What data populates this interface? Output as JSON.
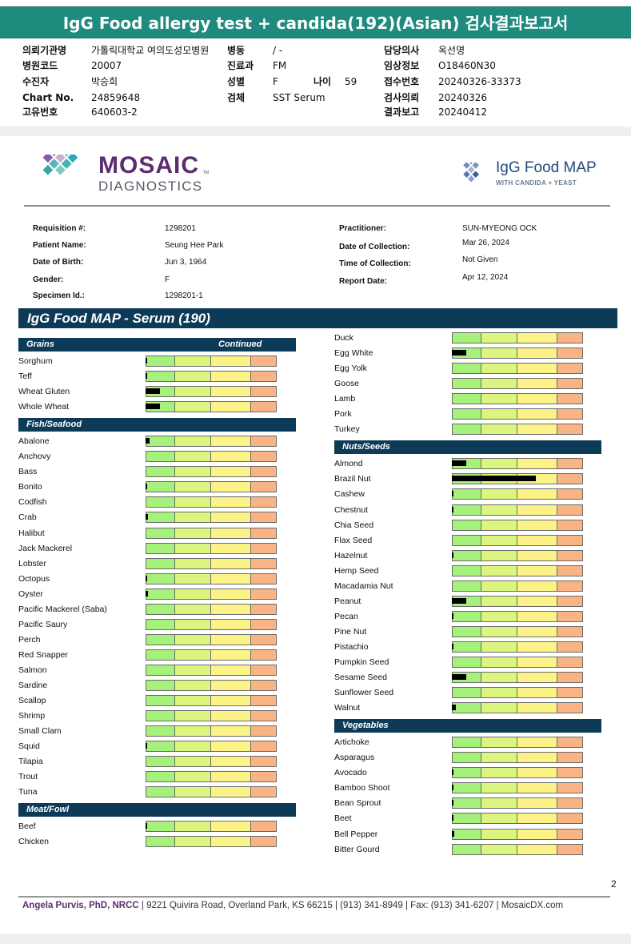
{
  "report_title": "IgG Food allergy test + candida(192)(Asian) 검사결과보고서",
  "korean_header": [
    {
      "label": "의뢰기관명",
      "value": "가톨릭대학교 여의도성모병원",
      "col": 0,
      "row": 0
    },
    {
      "label": "병원코드",
      "value": "20007",
      "col": 0,
      "row": 1
    },
    {
      "label": "수진자",
      "value": "박승희",
      "col": 0,
      "row": 2
    },
    {
      "label": "Chart No.",
      "value": "24859648",
      "col": 0,
      "row": 3
    },
    {
      "label": "고유번호",
      "value": "640603-2",
      "col": 0,
      "row": 4
    },
    {
      "label": "병동",
      "value": "/ -",
      "col": 1,
      "row": 0
    },
    {
      "label": "진료과",
      "value": "FM",
      "col": 1,
      "row": 1
    },
    {
      "label": "성별",
      "value": "F",
      "col": 1,
      "row": 2
    },
    {
      "label": "검체",
      "value": "SST Serum",
      "col": 1,
      "row": 3
    },
    {
      "label": "담당의사",
      "value": "옥선명",
      "col": 2,
      "row": 0
    },
    {
      "label": "임상정보",
      "value": "O18460N30",
      "col": 2,
      "row": 1
    },
    {
      "label": "접수번호",
      "value": "20240326-33373",
      "col": 2,
      "row": 2
    },
    {
      "label": "검사의뢰",
      "value": "20240326",
      "col": 2,
      "row": 3
    },
    {
      "label": "결과보고",
      "value": "20240412",
      "col": 2,
      "row": 4
    }
  ],
  "age_label": "나이",
  "age_value": "59",
  "logo_left": {
    "line1": "MOSAIC",
    "line2": "DIAGNOSTICS",
    "tm": "TM"
  },
  "logo_right": {
    "line1": "IgG Food MAP",
    "line2": "WITH CANDIDA + YEAST"
  },
  "patient_info": [
    {
      "label": "Requisition #:",
      "value": "1298201",
      "col": 0,
      "row": 0
    },
    {
      "label": "Patient Name:",
      "value": "Seung Hee Park",
      "col": 0,
      "row": 1
    },
    {
      "label": "Date of Birth:",
      "value": "Jun 3, 1964",
      "col": 0,
      "row": 2
    },
    {
      "label": "Gender:",
      "value": "F",
      "col": 0,
      "row": 3
    },
    {
      "label": "Specimen Id.:",
      "value": "1298201-1",
      "col": 0,
      "row": 4
    },
    {
      "label": "Practitioner:",
      "value": "SUN-MYEONG OCK",
      "col": 1,
      "row": 0
    },
    {
      "label": "Date of Collection:",
      "value": "Mar 26, 2024",
      "col": 1,
      "row": 1
    },
    {
      "label": "Time of Collection:",
      "value": "Not Given",
      "col": 1,
      "row": 2
    },
    {
      "label": "Report Date:",
      "value": "Apr 12, 2024",
      "col": 1,
      "row": 3
    }
  ],
  "map_title": "IgG Food MAP - Serum (190)",
  "bar_scale_note": "bar values are fraction of full scale width",
  "left_column": [
    {
      "type": "header",
      "title": "Grains",
      "extra": "Continued"
    },
    {
      "type": "food",
      "name": "Sorghum",
      "value": 0.012
    },
    {
      "type": "food",
      "name": "Teff",
      "value": 0.012
    },
    {
      "type": "food",
      "name": "Wheat Gluten",
      "value": 0.11
    },
    {
      "type": "food",
      "name": "Whole Wheat",
      "value": 0.11
    },
    {
      "type": "header",
      "title": "Fish/Seafood",
      "extra": ""
    },
    {
      "type": "food",
      "name": "Abalone",
      "value": 0.03
    },
    {
      "type": "food",
      "name": "Anchovy",
      "value": 0
    },
    {
      "type": "food",
      "name": "Bass",
      "value": 0
    },
    {
      "type": "food",
      "name": "Bonito",
      "value": 0.012
    },
    {
      "type": "food",
      "name": "Codfish",
      "value": 0
    },
    {
      "type": "food",
      "name": "Crab",
      "value": 0.018
    },
    {
      "type": "food",
      "name": "Halibut",
      "value": 0
    },
    {
      "type": "food",
      "name": "Jack Mackerel",
      "value": 0
    },
    {
      "type": "food",
      "name": "Lobster",
      "value": 0
    },
    {
      "type": "food",
      "name": "Octopus",
      "value": 0.008
    },
    {
      "type": "food",
      "name": "Oyster",
      "value": 0.018
    },
    {
      "type": "food",
      "name": "Pacific Mackerel (Saba)",
      "value": 0
    },
    {
      "type": "food",
      "name": "Pacific Saury",
      "value": 0
    },
    {
      "type": "food",
      "name": "Perch",
      "value": 0
    },
    {
      "type": "food",
      "name": "Red Snapper",
      "value": 0
    },
    {
      "type": "food",
      "name": "Salmon",
      "value": 0
    },
    {
      "type": "food",
      "name": "Sardine",
      "value": 0
    },
    {
      "type": "food",
      "name": "Scallop",
      "value": 0
    },
    {
      "type": "food",
      "name": "Shrimp",
      "value": 0
    },
    {
      "type": "food",
      "name": "Small Clam",
      "value": 0
    },
    {
      "type": "food",
      "name": "Squid",
      "value": 0.012
    },
    {
      "type": "food",
      "name": "Tilapia",
      "value": 0
    },
    {
      "type": "food",
      "name": "Trout",
      "value": 0
    },
    {
      "type": "food",
      "name": "Tuna",
      "value": 0
    },
    {
      "type": "header",
      "title": "Meat/Fowl",
      "extra": ""
    },
    {
      "type": "food",
      "name": "Beef",
      "value": 0.012
    },
    {
      "type": "food",
      "name": "Chicken",
      "value": 0
    }
  ],
  "right_column": [
    {
      "type": "food",
      "name": "Duck",
      "value": 0
    },
    {
      "type": "food",
      "name": "Egg White",
      "value": 0.11
    },
    {
      "type": "food",
      "name": "Egg Yolk",
      "value": 0
    },
    {
      "type": "food",
      "name": "Goose",
      "value": 0
    },
    {
      "type": "food",
      "name": "Lamb",
      "value": 0
    },
    {
      "type": "food",
      "name": "Pork",
      "value": 0
    },
    {
      "type": "food",
      "name": "Turkey",
      "value": 0
    },
    {
      "type": "header",
      "title": "Nuts/Seeds",
      "extra": ""
    },
    {
      "type": "food",
      "name": "Almond",
      "value": 0.11
    },
    {
      "type": "food",
      "name": "Brazil Nut",
      "value": 0.64
    },
    {
      "type": "food",
      "name": "Cashew",
      "value": 0.01
    },
    {
      "type": "food",
      "name": "Chestnut",
      "value": 0.01
    },
    {
      "type": "food",
      "name": "Chia Seed",
      "value": 0
    },
    {
      "type": "food",
      "name": "Flax Seed",
      "value": 0
    },
    {
      "type": "food",
      "name": "Hazelnut",
      "value": 0.012
    },
    {
      "type": "food",
      "name": "Hemp Seed",
      "value": 0
    },
    {
      "type": "food",
      "name": "Macadamia Nut",
      "value": 0
    },
    {
      "type": "food",
      "name": "Peanut",
      "value": 0.11
    },
    {
      "type": "food",
      "name": "Pecan",
      "value": 0.01
    },
    {
      "type": "food",
      "name": "Pine Nut",
      "value": 0
    },
    {
      "type": "food",
      "name": "Pistachio",
      "value": 0.012
    },
    {
      "type": "food",
      "name": "Pumpkin Seed",
      "value": 0
    },
    {
      "type": "food",
      "name": "Sesame Seed",
      "value": 0.11
    },
    {
      "type": "food",
      "name": "Sunflower Seed",
      "value": 0
    },
    {
      "type": "food",
      "name": "Walnut",
      "value": 0.03
    },
    {
      "type": "header",
      "title": "Vegetables",
      "extra": ""
    },
    {
      "type": "food",
      "name": "Artichoke",
      "value": 0
    },
    {
      "type": "food",
      "name": "Asparagus",
      "value": 0
    },
    {
      "type": "food",
      "name": "Avocado",
      "value": 0.012
    },
    {
      "type": "food",
      "name": "Bamboo Shoot",
      "value": 0.008
    },
    {
      "type": "food",
      "name": "Bean Sprout",
      "value": 0.012
    },
    {
      "type": "food",
      "name": "Beet",
      "value": 0.008
    },
    {
      "type": "food",
      "name": "Bell Pepper",
      "value": 0.018
    },
    {
      "type": "food",
      "name": "Bitter Gourd",
      "value": 0
    }
  ],
  "page_number": "2",
  "footer": {
    "name": "Angela Purvis, PhD, NRCC",
    "rest": " | 9221 Quivira Road, Overland Park, KS 66215  |  (913) 341-8949  |  Fax: (913) 341-6207 | MosaicDX.com"
  },
  "colors": {
    "teal": "#1f8a7e",
    "navy": "#0d3a57",
    "purple": "#5c2d6e",
    "green": "#a6f07c",
    "yellowgreen": "#dcf57f",
    "yellow": "#fbf388",
    "orange": "#f8b485"
  }
}
